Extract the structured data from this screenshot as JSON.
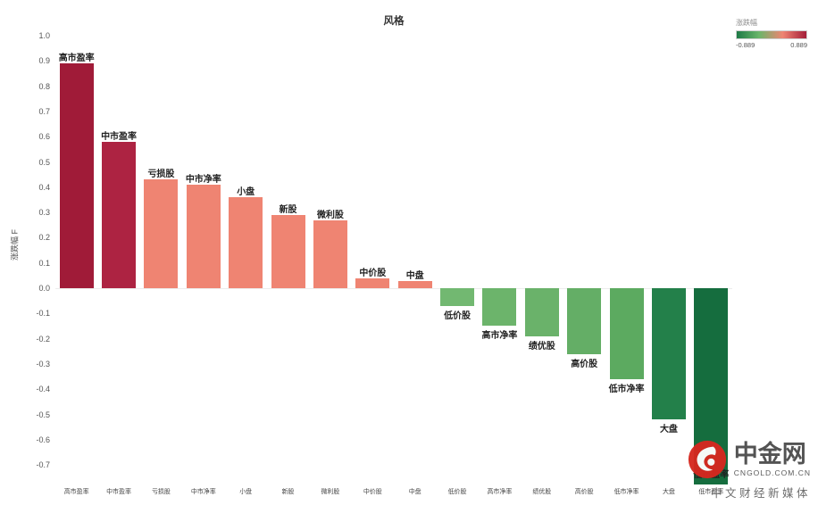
{
  "title": "风格",
  "legend": {
    "title": "涨跌幅",
    "min_label": "-0.889",
    "max_label": "0.889",
    "gradient": [
      "#1e7a46",
      "#6ab56a",
      "#ef8472",
      "#a41f3a"
    ]
  },
  "y_axis": {
    "label": "涨跌幅 F",
    "ticks": [
      "1.0",
      "0.9",
      "0.8",
      "0.7",
      "0.6",
      "0.5",
      "0.4",
      "0.3",
      "0.2",
      "0.1",
      "0.0",
      "-0.1",
      "-0.2",
      "-0.3",
      "-0.4",
      "-0.5",
      "-0.6",
      "-0.7"
    ]
  },
  "chart_data": {
    "type": "bar",
    "title": "风格",
    "xlabel": "",
    "ylabel": "涨跌幅 F",
    "ylim": [
      -0.78,
      1.0
    ],
    "grid": false,
    "legend_position": "top-right",
    "legend_range": [
      -0.889,
      0.889
    ],
    "categories": [
      "高市盈率",
      "中市盈率",
      "亏损股",
      "中市净率",
      "小盘",
      "新股",
      "微利股",
      "中价股",
      "中盘",
      "低价股",
      "高市净率",
      "绩优股",
      "高价股",
      "低市净率",
      "大盘",
      "低市盈率"
    ],
    "values": [
      0.89,
      0.58,
      0.43,
      0.41,
      0.36,
      0.29,
      0.27,
      0.04,
      0.03,
      -0.07,
      -0.15,
      -0.19,
      -0.26,
      -0.36,
      -0.52,
      -0.889
    ],
    "colors": [
      "#a01b38",
      "#ad2342",
      "#ef8472",
      "#ef8472",
      "#ef8472",
      "#ef8472",
      "#ef8472",
      "#ef8472",
      "#ef8472",
      "#72b871",
      "#6cb46b",
      "#6ab26a",
      "#64ae66",
      "#5caa60",
      "#23804a",
      "#156d3e"
    ]
  },
  "watermark": {
    "name": "中金网",
    "domain": "CNGOLD.COM.CN",
    "tagline": "中文财经新媒体",
    "brand_red": "#d6281f"
  }
}
